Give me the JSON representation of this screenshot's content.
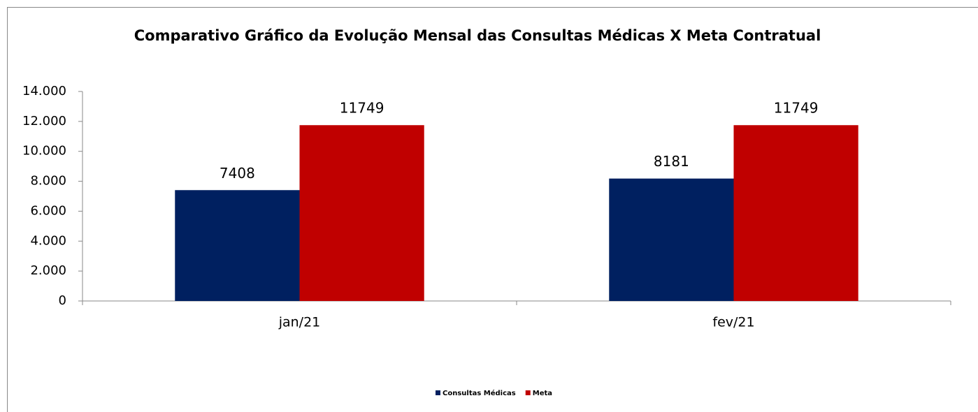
{
  "chart_data": {
    "type": "bar",
    "title": "Comparativo Gráfico da Evolução Mensal das Consultas Médicas X Meta Contratual",
    "categories": [
      "jan/21",
      "fev/21"
    ],
    "series": [
      {
        "name": "Consultas Médicas",
        "color": "#002060",
        "values": [
          7408,
          8181
        ]
      },
      {
        "name": "Meta",
        "color": "#c00000",
        "values": [
          11749,
          11749
        ]
      }
    ],
    "ylim": [
      0,
      14000
    ],
    "yticks": [
      0,
      {
        "value": 2000,
        "label": "2.000"
      },
      {
        "value": 4000,
        "label": "4.000"
      },
      {
        "value": 6000,
        "label": "6.000"
      },
      {
        "value": 8000,
        "label": "8.000"
      },
      {
        "value": 10000,
        "label": "10.000"
      },
      {
        "value": 12000,
        "label": "12.000"
      },
      {
        "value": 14000,
        "label": "14.000"
      }
    ],
    "legend": "bottom"
  }
}
